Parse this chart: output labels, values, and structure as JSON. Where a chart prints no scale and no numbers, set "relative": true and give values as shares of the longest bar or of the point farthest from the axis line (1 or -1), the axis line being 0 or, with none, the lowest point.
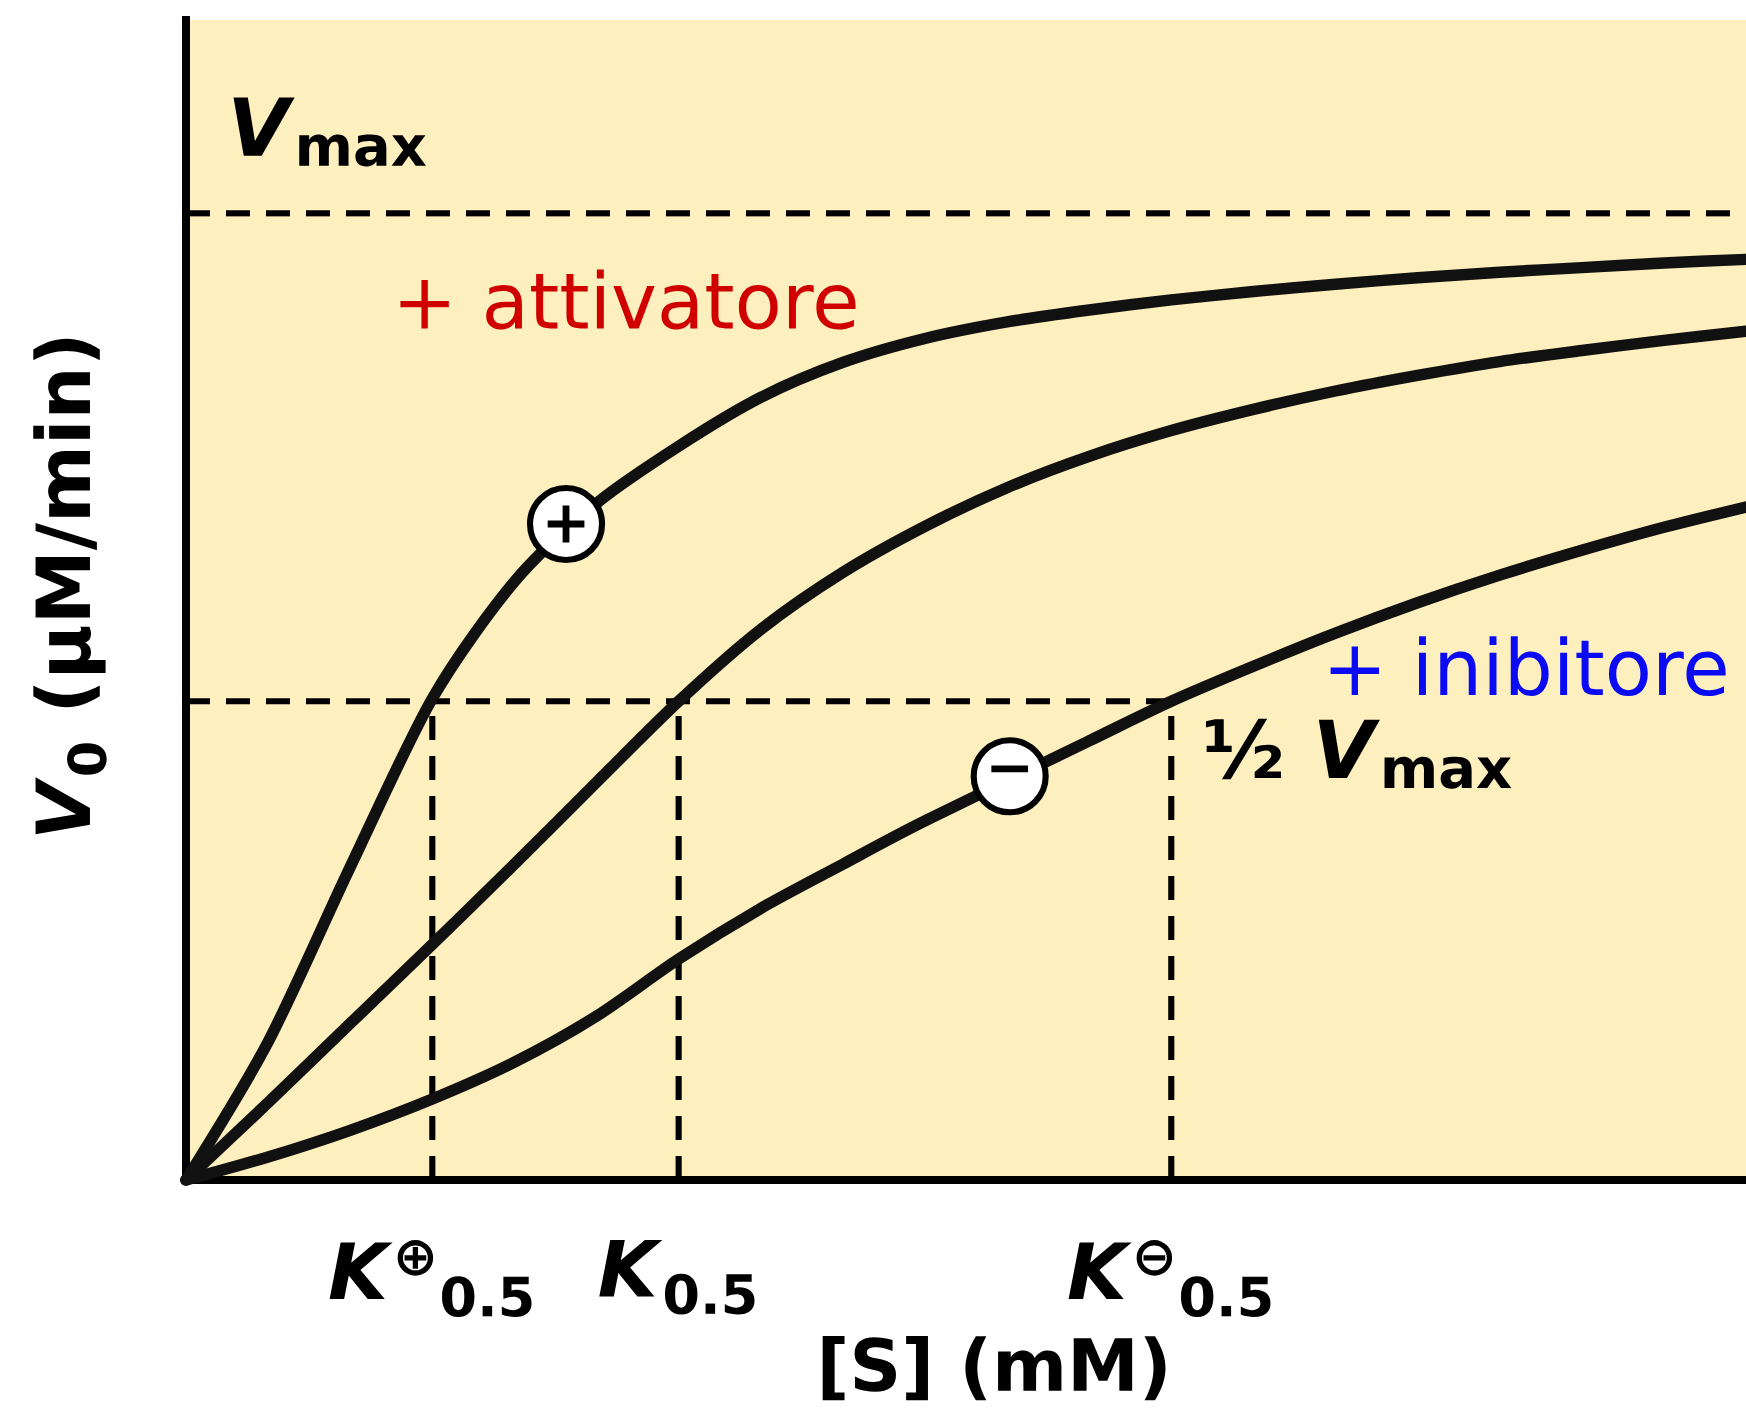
{
  "chart_data": {
    "type": "line",
    "relative": true,
    "xlabel": "[S] (mM)",
    "ylabel": "*V*$_{0}$ (μM/min)",
    "categories": [
      null,
      null,
      null,
      "*K*$^{⊕}$$_{0.5}$",
      null,
      null,
      "*K*$_{0.5}$",
      null,
      null,
      null,
      null,
      null,
      "*K*$^{⊖}$$_{0.5}$",
      null,
      null,
      null,
      null,
      null,
      null,
      null
    ],
    "series": [
      {
        "name": "+ attivatore",
        "color": "#111111",
        "values": [
          0,
          0.15,
          0.34,
          0.523,
          0.65,
          0.735,
          0.797,
          0.85,
          0.888,
          0.914,
          0.932,
          0.945,
          0.956,
          0.965,
          0.973,
          0.98,
          0.986,
          0.991,
          0.996,
          1.0
        ]
      },
      {
        "color": "#111111",
        "values": [
          0,
          0.084,
          0.17,
          0.256,
          0.343,
          0.432,
          0.52,
          0.598,
          0.66,
          0.71,
          0.752,
          0.786,
          0.814,
          0.837,
          0.857,
          0.874,
          0.889,
          0.901,
          0.912,
          0.922
        ]
      },
      {
        "name": "+ inibitore",
        "color": "#111111",
        "values": [
          0,
          0.025,
          0.054,
          0.088,
          0.128,
          0.178,
          0.24,
          0.295,
          0.343,
          0.39,
          null,
          0.477,
          0.52,
          0.558,
          0.594,
          0.627,
          0.657,
          0.684,
          0.709,
          0.731
        ]
      }
    ],
    "ref_lines": [
      {
        "axis": "y",
        "value": 1.05,
        "label": "*V*$_{max}$",
        "line_style": "dashed"
      },
      {
        "axis": "y",
        "value": 0.52,
        "label": "½ *V*$_{max}$",
        "line_style": "dashed"
      },
      {
        "axis": "x",
        "value": "*K*$^{⊕}$$_{0.5}$",
        "line_style": "dashed"
      },
      {
        "axis": "x",
        "value": "*K*$_{0.5}$",
        "line_style": "dashed"
      },
      {
        "axis": "x",
        "value": "*K*$^{⊖}$$_{0.5}$",
        "line_style": "dashed"
      }
    ],
    "annotations": [
      "+",
      "−"
    ]
  }
}
